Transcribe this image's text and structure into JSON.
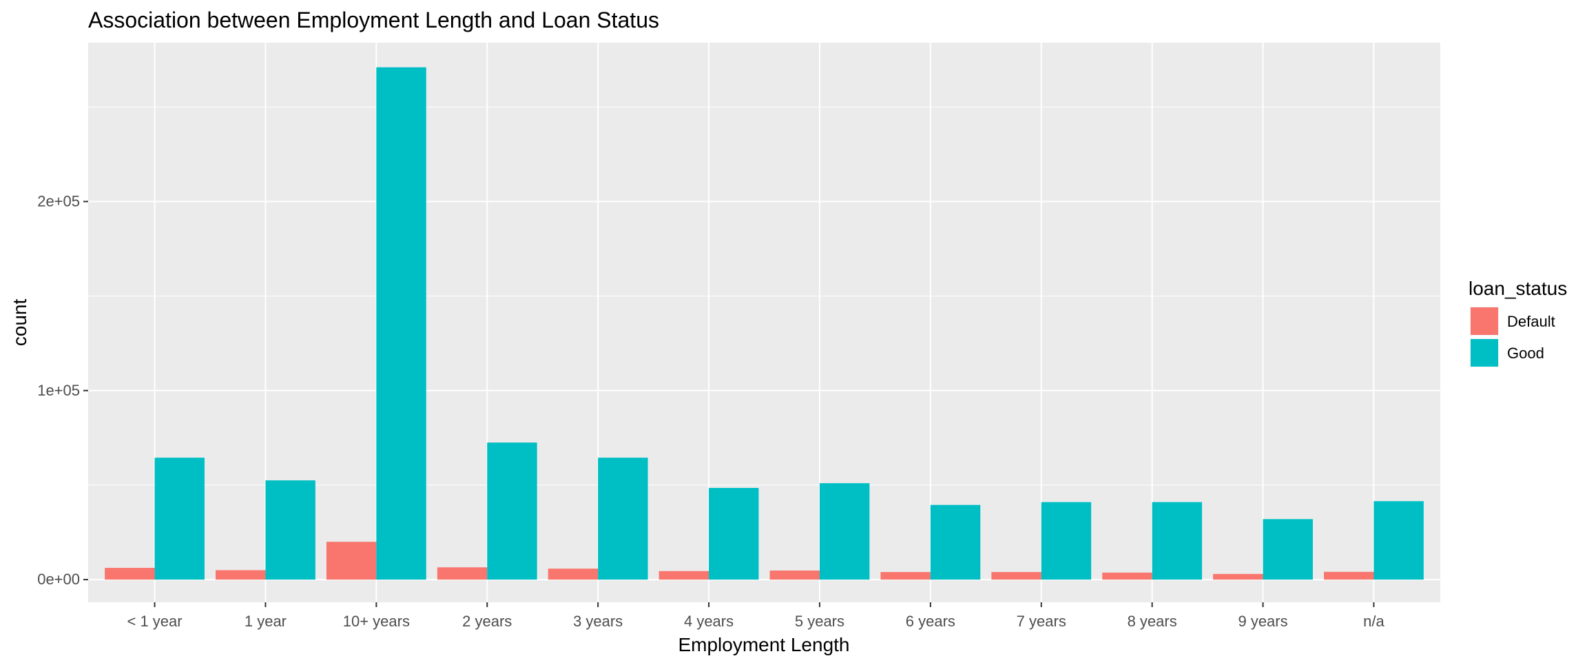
{
  "chart_data": {
    "type": "bar",
    "title": "Association between Employment Length and Loan Status",
    "xlabel": "Employment Length",
    "ylabel": "count",
    "categories": [
      "< 1 year",
      "1 year",
      "10+ years",
      "2 years",
      "3 years",
      "4 years",
      "5 years",
      "6 years",
      "7 years",
      "8 years",
      "9 years",
      "n/a"
    ],
    "series": [
      {
        "name": "Default",
        "color": "#F8766D",
        "values": [
          6200,
          5000,
          20000,
          6500,
          5800,
          4500,
          4800,
          4000,
          4000,
          3700,
          3000,
          4100
        ]
      },
      {
        "name": "Good",
        "color": "#00BFC4",
        "values": [
          64500,
          52500,
          271000,
          72500,
          64500,
          48500,
          51000,
          39500,
          41000,
          41000,
          32000,
          41500
        ]
      }
    ],
    "ylim": [
      -12000,
      284000
    ],
    "yticks": [
      0,
      100000,
      200000
    ],
    "ytick_labels": [
      "0e+00",
      "1e+05",
      "2e+05"
    ],
    "legend": {
      "title": "loan_status",
      "position": "right"
    },
    "grid": true,
    "panel_background": "#EBEBEB",
    "grid_color": "#FFFFFF"
  }
}
